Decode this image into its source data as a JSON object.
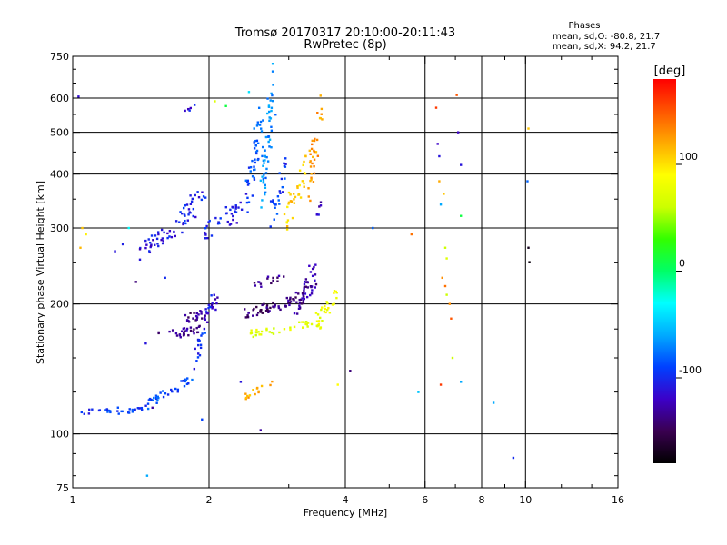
{
  "chart_data": {
    "type": "scatter",
    "title": "Tromsø 20170317 20:10:00-20:11:43",
    "subtitle": "RwPretec (8p)",
    "stats": {
      "heading": "Phases",
      "o_line": "mean, sd,O: -80.8, 21.7",
      "x_line": "mean, sd,X:  94.2, 21.7"
    },
    "xlabel": "Frequency [MHz]",
    "ylabel": "Stationary phase Virtual Height [km]",
    "x_scale": "log",
    "y_scale": "log",
    "xlim": [
      1,
      16
    ],
    "ylim": [
      75,
      750
    ],
    "x_ticks": [
      {
        "value": 1,
        "label": "1"
      },
      {
        "value": 2,
        "label": "2"
      },
      {
        "value": 4,
        "label": "4"
      },
      {
        "value": 6,
        "label": "6"
      },
      {
        "value": 8,
        "label": "8"
      },
      {
        "value": 10,
        "label": "10"
      },
      {
        "value": 16,
        "label": "16"
      }
    ],
    "x_minor_ticks": [
      3,
      5,
      7,
      9,
      12,
      14
    ],
    "x_gridlines": [
      2,
      4,
      6,
      8,
      10
    ],
    "y_ticks": [
      {
        "value": 75,
        "label": "75"
      },
      {
        "value": 100,
        "label": "100"
      },
      {
        "value": 200,
        "label": "200"
      },
      {
        "value": 300,
        "label": "300"
      },
      {
        "value": 400,
        "label": "400"
      },
      {
        "value": 500,
        "label": "500"
      },
      {
        "value": 600,
        "label": "600"
      },
      {
        "value": 750,
        "label": "750"
      }
    ],
    "y_minor_ticks": [
      80,
      90,
      125,
      150,
      175,
      250,
      350,
      450,
      550,
      650,
      700
    ],
    "y_gridlines": [
      100,
      200,
      300,
      400,
      500,
      600
    ],
    "colorbar": {
      "label": "[deg]",
      "range": [
        -180,
        180
      ],
      "ticks": [
        {
          "value": 100,
          "label": "100"
        },
        {
          "value": 0,
          "label": "0"
        },
        {
          "value": -100,
          "label": "-100"
        }
      ],
      "colors": [
        "#000000",
        "#3a0050",
        "#3c00c8",
        "#0040ff",
        "#00aaff",
        "#00ffff",
        "#00ff66",
        "#33ff00",
        "#ccff00",
        "#ffff00",
        "#ffaa00",
        "#ff5500",
        "#ff0000"
      ]
    },
    "clusters": [
      {
        "name": "",
        "phase": -95,
        "x_range": [
          1.05,
          1.42
        ],
        "y_range": [
          112,
          114
        ],
        "trend": "linear",
        "n": 30,
        "spread_y": 0.008
      },
      {
        "name": "",
        "phase": -88,
        "x_range": [
          1.42,
          1.85
        ],
        "y_range": [
          114,
          135
        ],
        "trend": "linear",
        "n": 40,
        "spread_y": 0.012
      },
      {
        "name": "",
        "phase": -98,
        "x_range": [
          1.85,
          2.02
        ],
        "y_range": [
          140,
          205
        ],
        "trend": "linear",
        "n": 25,
        "spread_y": 0.02
      },
      {
        "name": "",
        "phase": -132,
        "x_range": [
          1.55,
          1.92
        ],
        "y_range": [
          168,
          174
        ],
        "trend": "linear",
        "n": 30,
        "spread_y": 0.01
      },
      {
        "name": "",
        "phase": -138,
        "x_range": [
          1.7,
          1.95
        ],
        "y_range": [
          183,
          190
        ],
        "trend": "linear",
        "n": 20,
        "spread_y": 0.01
      },
      {
        "name": "",
        "phase": -125,
        "x_range": [
          1.95,
          2.1
        ],
        "y_range": [
          180,
          210
        ],
        "trend": "linear",
        "n": 15,
        "spread_y": 0.02
      },
      {
        "name": "",
        "phase": -110,
        "x_range": [
          1.4,
          1.7
        ],
        "y_range": [
          265,
          300
        ],
        "trend": "linear",
        "n": 35,
        "spread_y": 0.02
      },
      {
        "name": "",
        "phase": -105,
        "x_range": [
          1.7,
          1.95
        ],
        "y_range": [
          300,
          365
        ],
        "trend": "linear",
        "n": 35,
        "spread_y": 0.03
      },
      {
        "name": "",
        "phase": -100,
        "x_range": [
          1.95,
          2.2
        ],
        "y_range": [
          290,
          325
        ],
        "trend": "linear",
        "n": 20,
        "spread_y": 0.02
      },
      {
        "name": "",
        "phase": -105,
        "x_range": [
          2.2,
          2.42
        ],
        "y_range": [
          310,
          350
        ],
        "trend": "linear",
        "n": 20,
        "spread_y": 0.025
      },
      {
        "name": "",
        "phase": -85,
        "x_range": [
          2.42,
          2.62
        ],
        "y_range": [
          330,
          560
        ],
        "trend": "linear",
        "n": 45,
        "spread_y": 0.05
      },
      {
        "name": "",
        "phase": -70,
        "x_range": [
          2.62,
          2.78
        ],
        "y_range": [
          360,
          640
        ],
        "trend": "linear",
        "n": 55,
        "spread_y": 0.07
      },
      {
        "name": "",
        "phase": -95,
        "x_range": [
          2.72,
          3.0
        ],
        "y_range": [
          320,
          420
        ],
        "trend": "linear",
        "n": 25,
        "spread_y": 0.04
      },
      {
        "name": "",
        "phase": -140,
        "x_range": [
          2.4,
          3.2
        ],
        "y_range": [
          190,
          205
        ],
        "trend": "linear",
        "n": 55,
        "spread_y": 0.012
      },
      {
        "name": "",
        "phase": -130,
        "x_range": [
          3.1,
          3.45
        ],
        "y_range": [
          195,
          235
        ],
        "trend": "linear",
        "n": 45,
        "spread_y": 0.03
      },
      {
        "name": "",
        "phase": -135,
        "x_range": [
          2.5,
          2.95
        ],
        "y_range": [
          220,
          232
        ],
        "trend": "linear",
        "n": 15,
        "spread_y": 0.01
      },
      {
        "name": "",
        "phase": 105,
        "x_range": [
          2.95,
          3.3
        ],
        "y_range": [
          320,
          420
        ],
        "trend": "linear",
        "n": 35,
        "spread_y": 0.04
      },
      {
        "name": "",
        "phase": 125,
        "x_range": [
          3.3,
          3.55
        ],
        "y_range": [
          380,
          560
        ],
        "trend": "linear",
        "n": 35,
        "spread_y": 0.06
      },
      {
        "name": "",
        "phase": -120,
        "x_range": [
          3.45,
          3.55
        ],
        "y_range": [
          320,
          350
        ],
        "trend": "linear",
        "n": 6,
        "spread_y": 0.01
      },
      {
        "name": "",
        "phase": 70,
        "x_range": [
          2.45,
          3.45
        ],
        "y_range": [
          170,
          180
        ],
        "trend": "linear",
        "n": 35,
        "spread_y": 0.01
      },
      {
        "name": "",
        "phase": 80,
        "x_range": [
          3.45,
          3.85
        ],
        "y_range": [
          180,
          215
        ],
        "trend": "linear",
        "n": 30,
        "spread_y": 0.025
      },
      {
        "name": "",
        "phase": 120,
        "x_range": [
          2.4,
          2.75
        ],
        "y_range": [
          121,
          132
        ],
        "trend": "linear",
        "n": 15,
        "spread_y": 0.01
      },
      {
        "name": "",
        "phase": -108,
        "x_range": [
          1.78,
          1.88
        ],
        "y_range": [
          560,
          590
        ],
        "trend": "linear",
        "n": 6,
        "spread_y": 0.01
      }
    ],
    "points": [
      {
        "x": 1.03,
        "y": 605,
        "phase": -115
      },
      {
        "x": 1.05,
        "y": 300,
        "phase": 110
      },
      {
        "x": 1.07,
        "y": 290,
        "phase": 95
      },
      {
        "x": 1.04,
        "y": 270,
        "phase": 115
      },
      {
        "x": 1.24,
        "y": 265,
        "phase": -110
      },
      {
        "x": 1.29,
        "y": 275,
        "phase": -105
      },
      {
        "x": 1.33,
        "y": 300,
        "phase": -30
      },
      {
        "x": 1.38,
        "y": 225,
        "phase": -140
      },
      {
        "x": 1.45,
        "y": 162,
        "phase": -110
      },
      {
        "x": 1.46,
        "y": 80,
        "phase": -60
      },
      {
        "x": 1.5,
        "y": 115,
        "phase": -130
      },
      {
        "x": 1.6,
        "y": 230,
        "phase": -100
      },
      {
        "x": 1.93,
        "y": 108,
        "phase": -90
      },
      {
        "x": 2.06,
        "y": 590,
        "phase": 70
      },
      {
        "x": 2.18,
        "y": 575,
        "phase": 10
      },
      {
        "x": 2.45,
        "y": 620,
        "phase": -40
      },
      {
        "x": 2.6,
        "y": 102,
        "phase": -130
      },
      {
        "x": 2.35,
        "y": 132,
        "phase": -110
      },
      {
        "x": 3.33,
        "y": 245,
        "phase": -120
      },
      {
        "x": 3.85,
        "y": 130,
        "phase": 90
      },
      {
        "x": 4.1,
        "y": 140,
        "phase": -140
      },
      {
        "x": 4.6,
        "y": 300,
        "phase": -80
      },
      {
        "x": 5.6,
        "y": 290,
        "phase": 140
      },
      {
        "x": 5.8,
        "y": 125,
        "phase": -50
      },
      {
        "x": 6.35,
        "y": 570,
        "phase": 160
      },
      {
        "x": 6.4,
        "y": 470,
        "phase": -120
      },
      {
        "x": 6.45,
        "y": 440,
        "phase": -110
      },
      {
        "x": 6.45,
        "y": 385,
        "phase": 120
      },
      {
        "x": 6.6,
        "y": 360,
        "phase": 110
      },
      {
        "x": 6.5,
        "y": 340,
        "phase": -60
      },
      {
        "x": 6.65,
        "y": 270,
        "phase": 60
      },
      {
        "x": 6.7,
        "y": 255,
        "phase": 70
      },
      {
        "x": 6.55,
        "y": 230,
        "phase": 130
      },
      {
        "x": 6.65,
        "y": 220,
        "phase": 140
      },
      {
        "x": 6.7,
        "y": 210,
        "phase": 60
      },
      {
        "x": 6.8,
        "y": 200,
        "phase": 130
      },
      {
        "x": 6.85,
        "y": 185,
        "phase": 150
      },
      {
        "x": 6.5,
        "y": 130,
        "phase": 160
      },
      {
        "x": 6.9,
        "y": 150,
        "phase": 60
      },
      {
        "x": 7.05,
        "y": 610,
        "phase": 150
      },
      {
        "x": 7.1,
        "y": 500,
        "phase": -120
      },
      {
        "x": 7.2,
        "y": 420,
        "phase": -110
      },
      {
        "x": 7.2,
        "y": 320,
        "phase": 10
      },
      {
        "x": 7.2,
        "y": 132,
        "phase": -60
      },
      {
        "x": 8.5,
        "y": 118,
        "phase": -60
      },
      {
        "x": 9.4,
        "y": 88,
        "phase": -100
      },
      {
        "x": 10.15,
        "y": 510,
        "phase": 110
      },
      {
        "x": 10.1,
        "y": 385,
        "phase": -80
      },
      {
        "x": 10.15,
        "y": 270,
        "phase": -170
      },
      {
        "x": 10.2,
        "y": 250,
        "phase": -175
      }
    ]
  }
}
